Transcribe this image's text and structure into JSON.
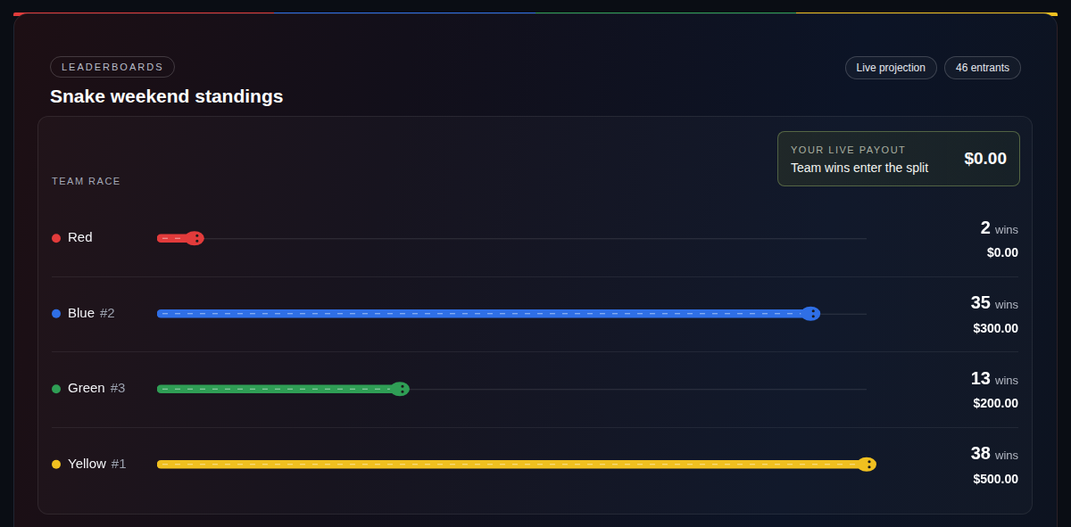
{
  "header": {
    "badge": "LEADERBOARDS",
    "title": "Snake weekend standings",
    "pills": [
      "Live projection",
      "46 entrants"
    ]
  },
  "payout_box": {
    "label": "YOUR LIVE PAYOUT",
    "caption": "Team wins enter the split",
    "amount": "$0.00"
  },
  "chart_data": {
    "type": "bar",
    "orientation": "horizontal",
    "title": "TEAM RACE",
    "categories": [
      "Red",
      "Blue",
      "Green",
      "Yellow"
    ],
    "ranks": [
      null,
      "#2",
      "#3",
      "#1"
    ],
    "values": [
      2,
      35,
      13,
      38
    ],
    "value_unit": "wins",
    "payouts": [
      "$0.00",
      "$300.00",
      "$200.00",
      "$500.00"
    ],
    "colors": [
      "#e23b3b",
      "#2f6fe6",
      "#2f9e55",
      "#f0c020"
    ],
    "xlim": [
      0,
      38
    ],
    "tick_labels": false,
    "grid": false,
    "data_labels": true
  }
}
